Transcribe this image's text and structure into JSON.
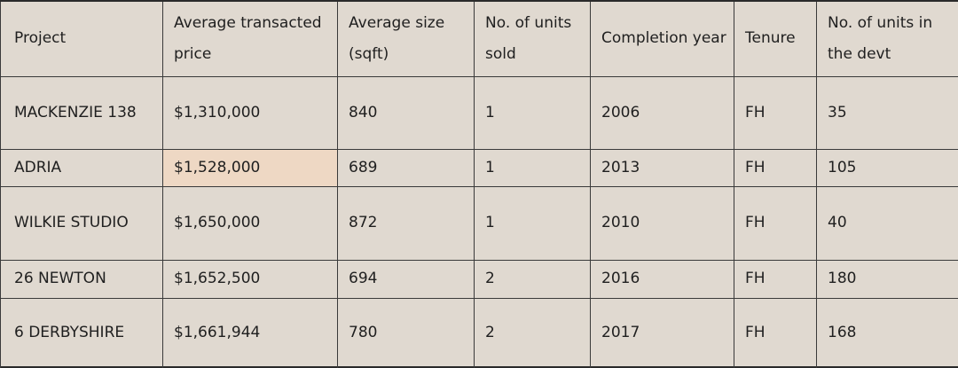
{
  "table": {
    "headers": [
      "Project",
      "Average transacted price",
      "Average size (sqft)",
      "No. of units sold",
      "Completion year",
      "Tenure",
      "No. of units in the devt"
    ],
    "rows": [
      [
        "MACKENZIE 138",
        "$1,310,000",
        "840",
        "1",
        "2006",
        "FH",
        "35"
      ],
      [
        "ADRIA",
        "$1,528,000",
        "689",
        "1",
        "2013",
        "FH",
        "105"
      ],
      [
        "WILKIE STUDIO",
        "$1,650,000",
        "872",
        "1",
        "2010",
        "FH",
        "40"
      ],
      [
        "26 NEWTON",
        "$1,652,500",
        "694",
        "2",
        "2016",
        "FH",
        "180"
      ],
      [
        "6 DERBYSHIRE",
        "$1,661,944",
        "780",
        "2",
        "2017",
        "FH",
        "168"
      ]
    ]
  },
  "colors": {
    "background": "#e0d9d0",
    "highlight_cell": "#eed8c4",
    "border": "#3a3a3a"
  }
}
